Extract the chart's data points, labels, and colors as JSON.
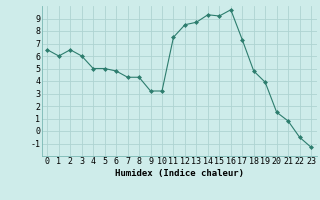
{
  "x": [
    0,
    1,
    2,
    3,
    4,
    5,
    6,
    7,
    8,
    9,
    10,
    11,
    12,
    13,
    14,
    15,
    16,
    17,
    18,
    19,
    20,
    21,
    22,
    23
  ],
  "y": [
    6.5,
    6.0,
    6.5,
    6.0,
    5.0,
    5.0,
    4.8,
    4.3,
    4.3,
    3.2,
    3.2,
    7.5,
    8.5,
    8.7,
    9.3,
    9.2,
    9.7,
    7.3,
    4.8,
    3.9,
    1.5,
    0.8,
    -0.5,
    -1.3
  ],
  "line_color": "#2d7d6e",
  "marker": "D",
  "marker_size": 2.0,
  "bg_color": "#ceecea",
  "grid_color": "#aed4d2",
  "xlabel": "Humidex (Indice chaleur)",
  "xlim": [
    -0.5,
    23.5
  ],
  "ylim": [
    -2,
    10
  ],
  "yticks": [
    -1,
    0,
    1,
    2,
    3,
    4,
    5,
    6,
    7,
    8,
    9
  ],
  "xticks": [
    0,
    1,
    2,
    3,
    4,
    5,
    6,
    7,
    8,
    9,
    10,
    11,
    12,
    13,
    14,
    15,
    16,
    17,
    18,
    19,
    20,
    21,
    22,
    23
  ],
  "xlabel_fontsize": 6.5,
  "tick_fontsize": 6.0,
  "line_width": 0.8
}
